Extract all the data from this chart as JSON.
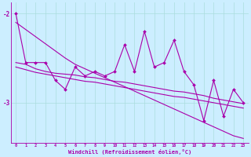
{
  "x": [
    0,
    1,
    2,
    3,
    4,
    5,
    6,
    7,
    8,
    9,
    10,
    11,
    12,
    13,
    14,
    15,
    16,
    17,
    18,
    19,
    20,
    21,
    22,
    23
  ],
  "y_main": [
    -2.0,
    -2.55,
    -2.55,
    -2.55,
    -2.75,
    -2.85,
    -2.6,
    -2.7,
    -2.65,
    -2.7,
    -2.65,
    -2.35,
    -2.65,
    -2.2,
    -2.6,
    -2.55,
    -2.3,
    -2.65,
    -2.8,
    -3.2,
    -2.75,
    -3.15,
    -2.85,
    -3.0
  ],
  "y_upper": [
    -2.55,
    -2.57,
    -2.62,
    -2.65,
    -2.67,
    -2.68,
    -2.69,
    -2.71,
    -2.72,
    -2.74,
    -2.76,
    -2.77,
    -2.79,
    -2.81,
    -2.83,
    -2.85,
    -2.87,
    -2.88,
    -2.9,
    -2.92,
    -2.95,
    -2.97,
    -2.99,
    -3.01
  ],
  "y_mid": [
    -2.6,
    -2.63,
    -2.66,
    -2.68,
    -2.7,
    -2.72,
    -2.74,
    -2.76,
    -2.77,
    -2.79,
    -2.81,
    -2.83,
    -2.85,
    -2.87,
    -2.89,
    -2.91,
    -2.93,
    -2.94,
    -2.96,
    -2.98,
    -3.0,
    -3.02,
    -3.04,
    -3.06
  ],
  "y_lower": [
    -2.1,
    -2.18,
    -2.26,
    -2.34,
    -2.42,
    -2.5,
    -2.57,
    -2.62,
    -2.67,
    -2.72,
    -2.77,
    -2.82,
    -2.87,
    -2.92,
    -2.97,
    -3.02,
    -3.07,
    -3.12,
    -3.17,
    -3.22,
    -3.27,
    -3.32,
    -3.37,
    -3.4
  ],
  "line_color": "#aa00aa",
  "bg_color": "#cceeff",
  "grid_color": "#aadddd",
  "ylim": [
    -3.45,
    -1.88
  ],
  "yticks": [
    -3,
    -2
  ],
  "xlabel": "Windchill (Refroidissement éolien,°C)",
  "xlim": [
    -0.5,
    23.5
  ]
}
